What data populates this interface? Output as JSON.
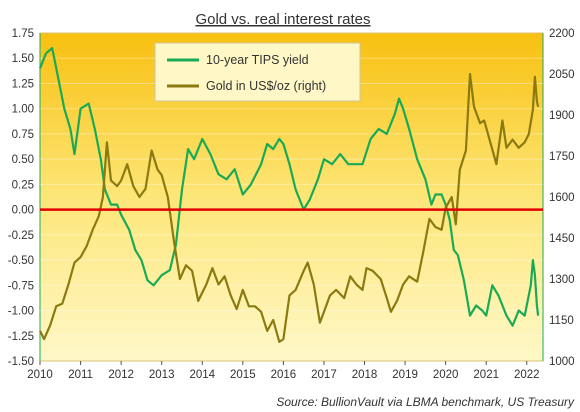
{
  "chart_data": {
    "type": "line",
    "title": "Gold vs. real interest rates",
    "source": "Source: BullionVault via LBMA benchmark, US Treasury",
    "x_ticks": [
      "2010",
      "2011",
      "2012",
      "2013",
      "2014",
      "2015",
      "2016",
      "2017",
      "2018",
      "2019",
      "2020",
      "2021",
      "2022"
    ],
    "y_left": {
      "ylim": [
        -1.5,
        1.75
      ],
      "ticks": [
        "1.75",
        "1.50",
        "1.25",
        "1.00",
        "0.75",
        "0.50",
        "0.25",
        "0.00",
        "-0.25",
        "-0.50",
        "-0.75",
        "-1.00",
        "-1.25",
        "-1.50"
      ]
    },
    "y_right": {
      "ylim": [
        1000,
        2200
      ],
      "ticks": [
        "2200",
        "2050",
        "1900",
        "1750",
        "1600",
        "1450",
        "1300",
        "1150",
        "1000"
      ]
    },
    "zero_line": 0,
    "legend_position": "top-center",
    "series": [
      {
        "name": "10-year TIPS yield",
        "axis": "left",
        "color": "#1aaa55",
        "points": [
          [
            2010.0,
            1.4
          ],
          [
            2010.15,
            1.55
          ],
          [
            2010.3,
            1.6
          ],
          [
            2010.45,
            1.3
          ],
          [
            2010.6,
            1.0
          ],
          [
            2010.75,
            0.8
          ],
          [
            2010.85,
            0.55
          ],
          [
            2011.0,
            1.0
          ],
          [
            2011.2,
            1.05
          ],
          [
            2011.35,
            0.8
          ],
          [
            2011.5,
            0.5
          ],
          [
            2011.6,
            0.2
          ],
          [
            2011.75,
            0.05
          ],
          [
            2011.9,
            0.05
          ],
          [
            2012.0,
            -0.05
          ],
          [
            2012.2,
            -0.2
          ],
          [
            2012.35,
            -0.4
          ],
          [
            2012.5,
            -0.5
          ],
          [
            2012.65,
            -0.7
          ],
          [
            2012.8,
            -0.75
          ],
          [
            2013.0,
            -0.65
          ],
          [
            2013.2,
            -0.6
          ],
          [
            2013.35,
            -0.35
          ],
          [
            2013.5,
            0.2
          ],
          [
            2013.65,
            0.6
          ],
          [
            2013.8,
            0.5
          ],
          [
            2014.0,
            0.7
          ],
          [
            2014.2,
            0.55
          ],
          [
            2014.4,
            0.35
          ],
          [
            2014.6,
            0.3
          ],
          [
            2014.8,
            0.4
          ],
          [
            2015.0,
            0.15
          ],
          [
            2015.2,
            0.25
          ],
          [
            2015.45,
            0.45
          ],
          [
            2015.6,
            0.65
          ],
          [
            2015.75,
            0.6
          ],
          [
            2015.9,
            0.7
          ],
          [
            2016.0,
            0.65
          ],
          [
            2016.15,
            0.45
          ],
          [
            2016.3,
            0.2
          ],
          [
            2016.5,
            0.0
          ],
          [
            2016.65,
            0.1
          ],
          [
            2016.85,
            0.3
          ],
          [
            2017.0,
            0.5
          ],
          [
            2017.2,
            0.45
          ],
          [
            2017.4,
            0.55
          ],
          [
            2017.6,
            0.45
          ],
          [
            2017.8,
            0.45
          ],
          [
            2017.95,
            0.45
          ],
          [
            2018.15,
            0.7
          ],
          [
            2018.35,
            0.8
          ],
          [
            2018.55,
            0.75
          ],
          [
            2018.75,
            0.95
          ],
          [
            2018.85,
            1.1
          ],
          [
            2018.95,
            1.0
          ],
          [
            2019.1,
            0.8
          ],
          [
            2019.3,
            0.5
          ],
          [
            2019.5,
            0.3
          ],
          [
            2019.65,
            0.05
          ],
          [
            2019.75,
            0.15
          ],
          [
            2019.9,
            0.15
          ],
          [
            2020.0,
            0.05
          ],
          [
            2020.1,
            -0.1
          ],
          [
            2020.2,
            -0.4
          ],
          [
            2020.3,
            -0.45
          ],
          [
            2020.45,
            -0.7
          ],
          [
            2020.6,
            -1.05
          ],
          [
            2020.75,
            -0.95
          ],
          [
            2020.9,
            -1.0
          ],
          [
            2021.0,
            -1.05
          ],
          [
            2021.15,
            -0.75
          ],
          [
            2021.3,
            -0.85
          ],
          [
            2021.5,
            -1.05
          ],
          [
            2021.65,
            -1.15
          ],
          [
            2021.8,
            -1.0
          ],
          [
            2021.95,
            -1.05
          ],
          [
            2022.1,
            -0.75
          ],
          [
            2022.15,
            -0.5
          ],
          [
            2022.2,
            -0.65
          ],
          [
            2022.25,
            -0.95
          ],
          [
            2022.28,
            -1.05
          ]
        ]
      },
      {
        "name": "Gold in US$/oz (right)",
        "axis": "right",
        "color": "#8a7a10",
        "points": [
          [
            2010.0,
            1110
          ],
          [
            2010.1,
            1080
          ],
          [
            2010.25,
            1130
          ],
          [
            2010.4,
            1200
          ],
          [
            2010.55,
            1210
          ],
          [
            2010.7,
            1280
          ],
          [
            2010.85,
            1360
          ],
          [
            2011.0,
            1380
          ],
          [
            2011.15,
            1420
          ],
          [
            2011.3,
            1480
          ],
          [
            2011.45,
            1530
          ],
          [
            2011.55,
            1600
          ],
          [
            2011.65,
            1800
          ],
          [
            2011.75,
            1660
          ],
          [
            2011.9,
            1640
          ],
          [
            2012.0,
            1660
          ],
          [
            2012.15,
            1720
          ],
          [
            2012.3,
            1640
          ],
          [
            2012.45,
            1600
          ],
          [
            2012.6,
            1630
          ],
          [
            2012.75,
            1770
          ],
          [
            2012.9,
            1700
          ],
          [
            2013.0,
            1680
          ],
          [
            2013.15,
            1600
          ],
          [
            2013.3,
            1440
          ],
          [
            2013.45,
            1300
          ],
          [
            2013.6,
            1350
          ],
          [
            2013.75,
            1330
          ],
          [
            2013.9,
            1220
          ],
          [
            2014.1,
            1280
          ],
          [
            2014.25,
            1340
          ],
          [
            2014.4,
            1280
          ],
          [
            2014.55,
            1310
          ],
          [
            2014.7,
            1240
          ],
          [
            2014.85,
            1190
          ],
          [
            2015.0,
            1260
          ],
          [
            2015.15,
            1200
          ],
          [
            2015.3,
            1200
          ],
          [
            2015.45,
            1180
          ],
          [
            2015.6,
            1110
          ],
          [
            2015.75,
            1150
          ],
          [
            2015.9,
            1070
          ],
          [
            2016.0,
            1080
          ],
          [
            2016.15,
            1240
          ],
          [
            2016.3,
            1260
          ],
          [
            2016.5,
            1330
          ],
          [
            2016.6,
            1360
          ],
          [
            2016.75,
            1280
          ],
          [
            2016.9,
            1140
          ],
          [
            2017.0,
            1180
          ],
          [
            2017.15,
            1240
          ],
          [
            2017.3,
            1260
          ],
          [
            2017.5,
            1230
          ],
          [
            2017.65,
            1310
          ],
          [
            2017.8,
            1280
          ],
          [
            2017.95,
            1260
          ],
          [
            2018.05,
            1340
          ],
          [
            2018.2,
            1330
          ],
          [
            2018.4,
            1300
          ],
          [
            2018.55,
            1230
          ],
          [
            2018.65,
            1180
          ],
          [
            2018.8,
            1220
          ],
          [
            2018.95,
            1280
          ],
          [
            2019.1,
            1310
          ],
          [
            2019.3,
            1290
          ],
          [
            2019.45,
            1400
          ],
          [
            2019.6,
            1520
          ],
          [
            2019.75,
            1490
          ],
          [
            2019.9,
            1480
          ],
          [
            2020.0,
            1560
          ],
          [
            2020.15,
            1600
          ],
          [
            2020.25,
            1500
          ],
          [
            2020.35,
            1700
          ],
          [
            2020.5,
            1770
          ],
          [
            2020.6,
            2050
          ],
          [
            2020.7,
            1930
          ],
          [
            2020.85,
            1870
          ],
          [
            2020.95,
            1880
          ],
          [
            2021.1,
            1800
          ],
          [
            2021.25,
            1720
          ],
          [
            2021.4,
            1880
          ],
          [
            2021.5,
            1780
          ],
          [
            2021.65,
            1810
          ],
          [
            2021.8,
            1780
          ],
          [
            2021.95,
            1800
          ],
          [
            2022.05,
            1830
          ],
          [
            2022.15,
            1920
          ],
          [
            2022.2,
            2040
          ],
          [
            2022.25,
            1950
          ],
          [
            2022.28,
            1930
          ]
        ]
      }
    ]
  }
}
